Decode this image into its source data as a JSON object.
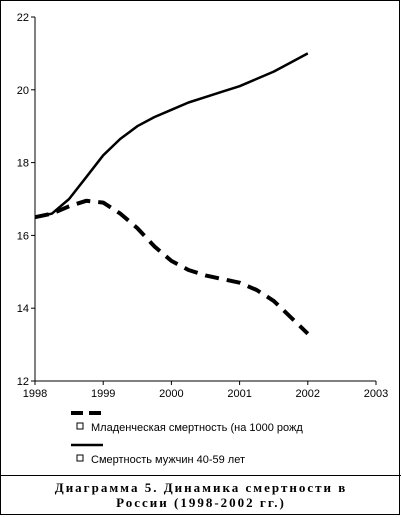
{
  "chart_data": {
    "type": "line",
    "title": "",
    "xlabel": "",
    "ylabel": "",
    "xlim": [
      1998,
      2003
    ],
    "ylim": [
      12,
      22
    ],
    "xticks": [
      1998,
      1999,
      2000,
      2001,
      2002,
      2003
    ],
    "yticks": [
      12,
      14,
      16,
      18,
      20,
      22
    ],
    "grid": false,
    "legend_position": "bottom",
    "series": [
      {
        "name": "Младенческая смертность (на 1000 рожд",
        "style": "dashed",
        "color": "#000000",
        "x": [
          1998,
          1998.25,
          1998.5,
          1998.75,
          1999,
          1999.25,
          1999.5,
          1999.75,
          2000,
          2000.25,
          2000.5,
          2000.75,
          2001,
          2001.25,
          2001.5,
          2001.75,
          2002
        ],
        "y": [
          16.5,
          16.6,
          16.8,
          16.95,
          16.9,
          16.6,
          16.2,
          15.7,
          15.3,
          15.05,
          14.9,
          14.8,
          14.7,
          14.5,
          14.2,
          13.75,
          13.3
        ]
      },
      {
        "name": "Смертность мужчин 40-59 лет",
        "style": "solid",
        "color": "#000000",
        "x": [
          1998,
          1998.25,
          1998.5,
          1998.75,
          1999,
          1999.25,
          1999.5,
          1999.75,
          2000,
          2000.25,
          2000.5,
          2000.75,
          2001,
          2001.25,
          2001.5,
          2001.75,
          2002
        ],
        "y": [
          16.5,
          16.6,
          17.0,
          17.6,
          18.2,
          18.65,
          19.0,
          19.25,
          19.45,
          19.65,
          19.8,
          19.95,
          20.1,
          20.3,
          20.5,
          20.75,
          21.0
        ]
      }
    ]
  },
  "caption": {
    "line1": "Диаграмма 5. Динамика смертности в",
    "line2": "России (1998-2002 гг.)"
  }
}
